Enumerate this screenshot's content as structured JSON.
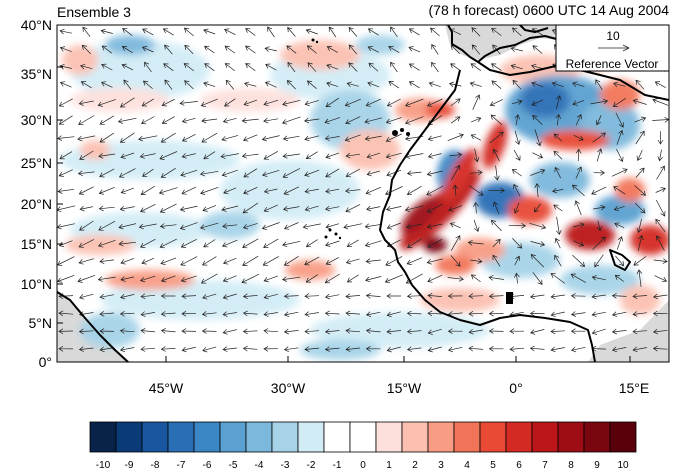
{
  "title_left": "Ensemble 3",
  "title_right": "(78 h forecast) 0600 UTC 14 Aug 2004",
  "reference_vector": {
    "magnitude": "10",
    "label": "Reference Vector"
  },
  "lat_labels": [
    "40°N",
    "35°N",
    "30°N",
    "25°N",
    "20°N",
    "15°N",
    "10°N",
    "5°N",
    "0°"
  ],
  "lon_labels": [
    "45°W",
    "30°W",
    "15°W",
    "0°",
    "15°E"
  ],
  "colorbar": {
    "tick_labels": [
      "-10",
      "-9",
      "-8",
      "-7",
      "-6",
      "-5",
      "-4",
      "-3",
      "-2",
      "-1",
      "0",
      "1",
      "2",
      "3",
      "4",
      "5",
      "6",
      "7",
      "8",
      "9",
      "10"
    ],
    "colors": [
      "#08224a",
      "#0b3a78",
      "#1a55a0",
      "#2a6eb6",
      "#3b86c4",
      "#5aa0d0",
      "#7cb8dc",
      "#a6d3e8",
      "#d2ecf6",
      "#ffffff",
      "#ffffff",
      "#fde0dc",
      "#fbc0b0",
      "#f89c84",
      "#f27458",
      "#e84a36",
      "#d42a24",
      "#bb1619",
      "#9c0d15",
      "#7a0610",
      "#5a000b"
    ]
  },
  "colors": {
    "land_gray": "#d9d9d9",
    "coast": "#000000",
    "arrow": "#222222"
  }
}
